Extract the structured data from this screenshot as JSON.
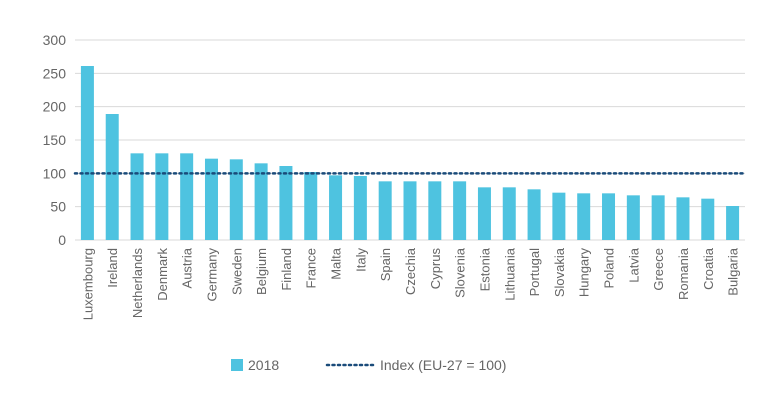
{
  "chart_data": {
    "type": "bar",
    "categories": [
      "Luxembourg",
      "Ireland",
      "Netherlands",
      "Denmark",
      "Austria",
      "Germany",
      "Sweden",
      "Belgium",
      "Finland",
      "France",
      "Malta",
      "Italy",
      "Spain",
      "Czechia",
      "Cyprus",
      "Slovenia",
      "Estonia",
      "Lithuania",
      "Portugal",
      "Slovakia",
      "Hungary",
      "Poland",
      "Latvia",
      "Greece",
      "Romania",
      "Croatia",
      "Bulgaria"
    ],
    "series": [
      {
        "name": "2018",
        "color": "#4ec3e0",
        "values": [
          261,
          189,
          130,
          130,
          130,
          122,
          121,
          115,
          111,
          102,
          97,
          96,
          88,
          88,
          88,
          88,
          79,
          79,
          76,
          71,
          70,
          70,
          67,
          67,
          64,
          62,
          51
        ]
      }
    ],
    "reference_line": {
      "name": "Index (EU-27 = 100)",
      "value": 100,
      "color": "#1a4b7a",
      "style": "dotted"
    },
    "ylim": [
      0,
      300
    ],
    "yticks": [
      0,
      50,
      100,
      150,
      200,
      250,
      300
    ],
    "grid": true,
    "legend_position": "bottom"
  },
  "colors": {
    "grid": "#d9d9d9",
    "axis_text": "#666666"
  }
}
